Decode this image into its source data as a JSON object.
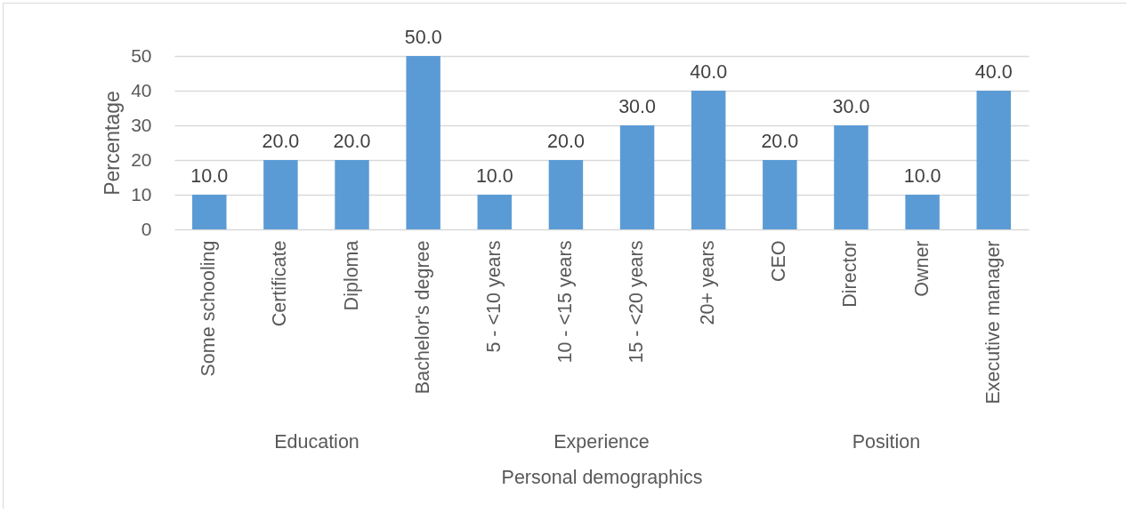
{
  "chart_data": {
    "type": "bar",
    "xlabel": "Personal demographics",
    "ylabel": "Percentage",
    "categories": [
      "Some schooling",
      "Certificate",
      "Diploma",
      "Bachelor's degree",
      "5 - <10 years",
      "10 - <15 years",
      "15 - <20 years",
      "20+ years",
      "CEO",
      "Director",
      "Owner",
      "Executive manager"
    ],
    "values": [
      10,
      20,
      20,
      50,
      10,
      20,
      30,
      40,
      20,
      30,
      10,
      40
    ],
    "value_labels": [
      "10.0",
      "20.0",
      "20.0",
      "50.0",
      "10.0",
      "20.0",
      "30.0",
      "40.0",
      "20.0",
      "30.0",
      "10.0",
      "40.0"
    ],
    "color": "#5b9bd5",
    "ylim": [
      0,
      50
    ],
    "yticks": [
      0,
      10,
      20,
      30,
      40,
      50
    ],
    "grid": "y",
    "annotations": [
      "Education",
      "Experience",
      "Position"
    ]
  }
}
